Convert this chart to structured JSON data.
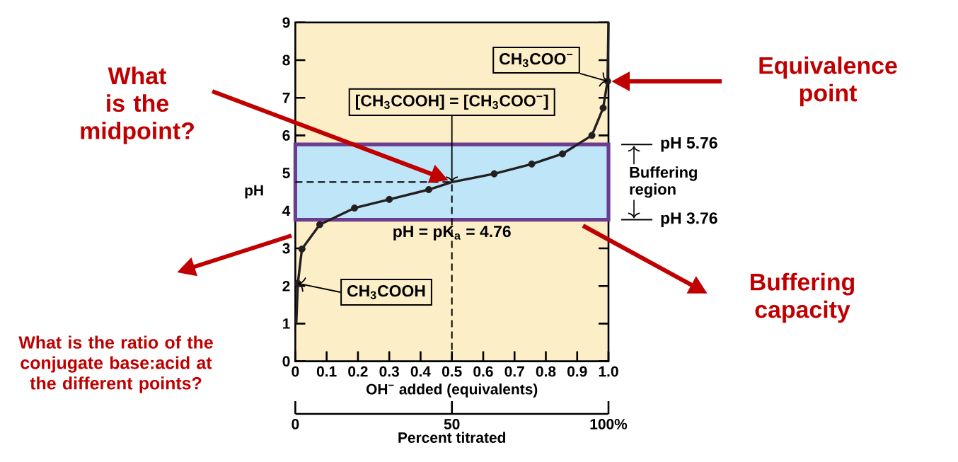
{
  "chart_data": {
    "type": "line",
    "xlabel": "OH$^{−}$ added (equivalents)",
    "ylabel": "pH",
    "xlim": [
      0,
      1
    ],
    "ylim": [
      0,
      9
    ],
    "xticks": [
      0,
      0.1,
      0.2,
      0.3,
      0.4,
      0.5,
      0.6,
      0.7,
      0.8,
      0.9,
      {
        "value": 1,
        "label": "1.0"
      }
    ],
    "yticks": [
      0,
      1,
      2,
      3,
      4,
      5,
      6,
      7,
      8,
      9
    ],
    "x2lim": [
      0,
      100
    ],
    "x2ticks": [
      0,
      50,
      {
        "value": 100,
        "label": "100%"
      }
    ],
    "x2label": "Percent titrated",
    "series": [
      {
        "type": "line",
        "color": "#231f20",
        "x": [
          0.003,
          0.008,
          0.021,
          0.078,
          0.189,
          0.3,
          0.426,
          0.5,
          0.635,
          0.755,
          0.853,
          0.947,
          0.983,
          0.997,
          1.0
        ],
        "values": [
          1.0,
          2.07,
          2.98,
          3.63,
          4.07,
          4.3,
          4.56,
          4.76,
          4.98,
          5.24,
          5.51,
          6.0,
          6.73,
          7.44,
          9.0
        ]
      },
      {
        "type": "scatter",
        "color": "#231f20",
        "x": [
          0.008,
          0.021,
          0.078,
          0.189,
          0.3,
          0.426,
          0.635,
          0.755,
          0.853,
          0.947,
          0.983,
          0.997
        ],
        "values": [
          2.07,
          2.98,
          3.63,
          4.07,
          4.3,
          4.56,
          4.98,
          5.24,
          5.51,
          6.0,
          6.73,
          7.44
        ]
      }
    ],
    "ref_lines": [
      {
        "axis": "y",
        "value": 4.76,
        "label": "pH = pK$_{a}$ = 4.76",
        "line_style": "dashed"
      },
      {
        "axis": "x",
        "value": 0.5,
        "label": "[CH$_{3}$COOH] = [CH$_{3}$COO$^{−}$]",
        "line_style": "dashed"
      }
    ],
    "bands": [
      {
        "axis": "y",
        "from": 3.76,
        "to": 5.76,
        "label": "Buffering region",
        "color": "#bfe6f8"
      }
    ],
    "annotations": [
      "What is the midpoint?",
      "Equivalence point",
      "What is the ratio of the conjugate base:acid at the different points?",
      "Buffering capacity",
      {
        "text": "CH$_{3}$COO$^{−}$",
        "x": 0.997,
        "y": 7.44
      },
      {
        "text": "CH$_{3}$COOH",
        "x": 0.008,
        "y": 2.07
      },
      "pH 5.76",
      "pH 3.76"
    ]
  }
}
